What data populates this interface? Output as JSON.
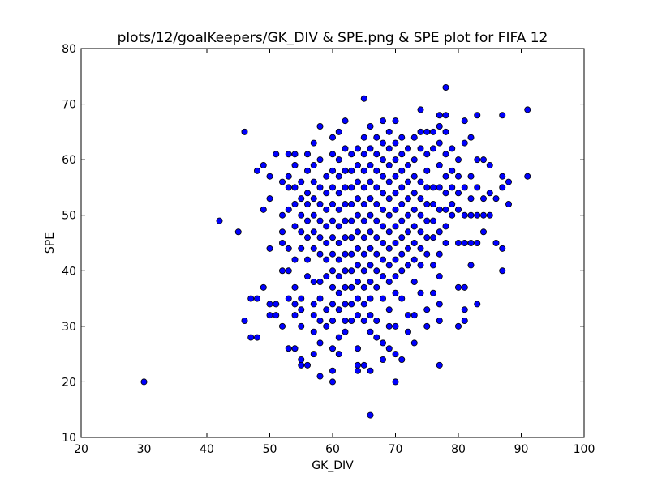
{
  "chart_data": {
    "type": "scatter",
    "title": "plots/12/goalKeepers/GK_DIV & SPE.png & SPE plot for FIFA 12",
    "xlabel": "GK_DIV",
    "ylabel": "SPE",
    "xlim": [
      20,
      100
    ],
    "ylim": [
      10,
      80
    ],
    "xticks": [
      20,
      30,
      40,
      50,
      60,
      70,
      80,
      90,
      100
    ],
    "yticks": [
      10,
      20,
      30,
      40,
      50,
      60,
      70,
      80
    ],
    "grid": false,
    "marker_color": "#0000ff",
    "marker_edge_color": "#000000",
    "points": [
      [
        30,
        20
      ],
      [
        42,
        49
      ],
      [
        45,
        47
      ],
      [
        46,
        65
      ],
      [
        46,
        31
      ],
      [
        47,
        35
      ],
      [
        47,
        28
      ],
      [
        48,
        58
      ],
      [
        48,
        35
      ],
      [
        48,
        28
      ],
      [
        49,
        59
      ],
      [
        49,
        51
      ],
      [
        49,
        37
      ],
      [
        50,
        57
      ],
      [
        50,
        53
      ],
      [
        50,
        44
      ],
      [
        50,
        34
      ],
      [
        50,
        32
      ],
      [
        51,
        61
      ],
      [
        51,
        34
      ],
      [
        51,
        32
      ],
      [
        52,
        56
      ],
      [
        52,
        50
      ],
      [
        52,
        47
      ],
      [
        52,
        45
      ],
      [
        52,
        40
      ],
      [
        52,
        30
      ],
      [
        53,
        61
      ],
      [
        53,
        57
      ],
      [
        53,
        55
      ],
      [
        53,
        51
      ],
      [
        53,
        44
      ],
      [
        53,
        40
      ],
      [
        53,
        35
      ],
      [
        53,
        26
      ],
      [
        54,
        61
      ],
      [
        54,
        59
      ],
      [
        54,
        55
      ],
      [
        54,
        52
      ],
      [
        54,
        48
      ],
      [
        54,
        42
      ],
      [
        54,
        37
      ],
      [
        54,
        34
      ],
      [
        54,
        32
      ],
      [
        54,
        26
      ],
      [
        55,
        56
      ],
      [
        55,
        53
      ],
      [
        55,
        50
      ],
      [
        55,
        47
      ],
      [
        55,
        44
      ],
      [
        55,
        35
      ],
      [
        55,
        33
      ],
      [
        55,
        30
      ],
      [
        55,
        24
      ],
      [
        55,
        23
      ],
      [
        56,
        61
      ],
      [
        56,
        58
      ],
      [
        56,
        54
      ],
      [
        56,
        52
      ],
      [
        56,
        49
      ],
      [
        56,
        46
      ],
      [
        56,
        42
      ],
      [
        56,
        39
      ],
      [
        56,
        23
      ],
      [
        57,
        63
      ],
      [
        57,
        59
      ],
      [
        57,
        56
      ],
      [
        57,
        53
      ],
      [
        57,
        50
      ],
      [
        57,
        47
      ],
      [
        57,
        44
      ],
      [
        57,
        38
      ],
      [
        57,
        34
      ],
      [
        57,
        32
      ],
      [
        57,
        29
      ],
      [
        57,
        25
      ],
      [
        58,
        66
      ],
      [
        58,
        60
      ],
      [
        58,
        55
      ],
      [
        58,
        52
      ],
      [
        58,
        49
      ],
      [
        58,
        46
      ],
      [
        58,
        43
      ],
      [
        58,
        38
      ],
      [
        58,
        35
      ],
      [
        58,
        31
      ],
      [
        58,
        27
      ],
      [
        58,
        21
      ],
      [
        59,
        57
      ],
      [
        59,
        54
      ],
      [
        59,
        51
      ],
      [
        59,
        48
      ],
      [
        59,
        45
      ],
      [
        59,
        42
      ],
      [
        59,
        39
      ],
      [
        59,
        33
      ],
      [
        59,
        30
      ],
      [
        60,
        64
      ],
      [
        60,
        61
      ],
      [
        60,
        58
      ],
      [
        60,
        55
      ],
      [
        60,
        52
      ],
      [
        60,
        49
      ],
      [
        60,
        46
      ],
      [
        60,
        43
      ],
      [
        60,
        40
      ],
      [
        60,
        37
      ],
      [
        60,
        34
      ],
      [
        60,
        31
      ],
      [
        60,
        26
      ],
      [
        60,
        22
      ],
      [
        60,
        20
      ],
      [
        61,
        65
      ],
      [
        61,
        60
      ],
      [
        61,
        57
      ],
      [
        61,
        54
      ],
      [
        61,
        51
      ],
      [
        61,
        48
      ],
      [
        61,
        45
      ],
      [
        61,
        42
      ],
      [
        61,
        39
      ],
      [
        61,
        36
      ],
      [
        61,
        33
      ],
      [
        61,
        28
      ],
      [
        61,
        25
      ],
      [
        62,
        67
      ],
      [
        62,
        62
      ],
      [
        62,
        58
      ],
      [
        62,
        55
      ],
      [
        62,
        52
      ],
      [
        62,
        49
      ],
      [
        62,
        46
      ],
      [
        62,
        43
      ],
      [
        62,
        40
      ],
      [
        62,
        37
      ],
      [
        62,
        34
      ],
      [
        62,
        31
      ],
      [
        62,
        29
      ],
      [
        63,
        61
      ],
      [
        63,
        58
      ],
      [
        63,
        55
      ],
      [
        63,
        52
      ],
      [
        63,
        49
      ],
      [
        63,
        46
      ],
      [
        63,
        43
      ],
      [
        63,
        40
      ],
      [
        63,
        37
      ],
      [
        63,
        34
      ],
      [
        63,
        31
      ],
      [
        64,
        62
      ],
      [
        64,
        59
      ],
      [
        64,
        56
      ],
      [
        64,
        53
      ],
      [
        64,
        50
      ],
      [
        64,
        47
      ],
      [
        64,
        44
      ],
      [
        64,
        41
      ],
      [
        64,
        38
      ],
      [
        64,
        35
      ],
      [
        64,
        32
      ],
      [
        64,
        26
      ],
      [
        64,
        23
      ],
      [
        64,
        22
      ],
      [
        65,
        71
      ],
      [
        65,
        64
      ],
      [
        65,
        61
      ],
      [
        65,
        58
      ],
      [
        65,
        55
      ],
      [
        65,
        52
      ],
      [
        65,
        49
      ],
      [
        65,
        46
      ],
      [
        65,
        43
      ],
      [
        65,
        40
      ],
      [
        65,
        37
      ],
      [
        65,
        34
      ],
      [
        65,
        31
      ],
      [
        65,
        23
      ],
      [
        66,
        66
      ],
      [
        66,
        62
      ],
      [
        66,
        59
      ],
      [
        66,
        56
      ],
      [
        66,
        53
      ],
      [
        66,
        50
      ],
      [
        66,
        47
      ],
      [
        66,
        44
      ],
      [
        66,
        41
      ],
      [
        66,
        38
      ],
      [
        66,
        35
      ],
      [
        66,
        32
      ],
      [
        66,
        29
      ],
      [
        66,
        22
      ],
      [
        66,
        14
      ],
      [
        67,
        64
      ],
      [
        67,
        61
      ],
      [
        67,
        58
      ],
      [
        67,
        55
      ],
      [
        67,
        52
      ],
      [
        67,
        49
      ],
      [
        67,
        46
      ],
      [
        67,
        43
      ],
      [
        67,
        40
      ],
      [
        67,
        37
      ],
      [
        67,
        31
      ],
      [
        67,
        28
      ],
      [
        68,
        67
      ],
      [
        68,
        63
      ],
      [
        68,
        60
      ],
      [
        68,
        57
      ],
      [
        68,
        54
      ],
      [
        68,
        51
      ],
      [
        68,
        48
      ],
      [
        68,
        45
      ],
      [
        68,
        42
      ],
      [
        68,
        39
      ],
      [
        68,
        35
      ],
      [
        68,
        27
      ],
      [
        68,
        24
      ],
      [
        69,
        65
      ],
      [
        69,
        62
      ],
      [
        69,
        59
      ],
      [
        69,
        56
      ],
      [
        69,
        53
      ],
      [
        69,
        50
      ],
      [
        69,
        47
      ],
      [
        69,
        44
      ],
      [
        69,
        41
      ],
      [
        69,
        38
      ],
      [
        69,
        33
      ],
      [
        69,
        30
      ],
      [
        69,
        26
      ],
      [
        70,
        67
      ],
      [
        70,
        63
      ],
      [
        70,
        60
      ],
      [
        70,
        57
      ],
      [
        70,
        54
      ],
      [
        70,
        51
      ],
      [
        70,
        48
      ],
      [
        70,
        45
      ],
      [
        70,
        42
      ],
      [
        70,
        39
      ],
      [
        70,
        36
      ],
      [
        70,
        30
      ],
      [
        70,
        25
      ],
      [
        70,
        20
      ],
      [
        71,
        64
      ],
      [
        71,
        61
      ],
      [
        71,
        58
      ],
      [
        71,
        55
      ],
      [
        71,
        52
      ],
      [
        71,
        49
      ],
      [
        71,
        46
      ],
      [
        71,
        43
      ],
      [
        71,
        40
      ],
      [
        71,
        35
      ],
      [
        71,
        24
      ],
      [
        72,
        62
      ],
      [
        72,
        59
      ],
      [
        72,
        56
      ],
      [
        72,
        53
      ],
      [
        72,
        50
      ],
      [
        72,
        47
      ],
      [
        72,
        44
      ],
      [
        72,
        41
      ],
      [
        72,
        32
      ],
      [
        72,
        29
      ],
      [
        73,
        64
      ],
      [
        73,
        60
      ],
      [
        73,
        57
      ],
      [
        73,
        54
      ],
      [
        73,
        51
      ],
      [
        73,
        48
      ],
      [
        73,
        45
      ],
      [
        73,
        42
      ],
      [
        73,
        38
      ],
      [
        73,
        32
      ],
      [
        73,
        27
      ],
      [
        74,
        69
      ],
      [
        74,
        65
      ],
      [
        74,
        62
      ],
      [
        74,
        56
      ],
      [
        74,
        53
      ],
      [
        74,
        50
      ],
      [
        74,
        47
      ],
      [
        74,
        44
      ],
      [
        74,
        41
      ],
      [
        74,
        36
      ],
      [
        75,
        65
      ],
      [
        75,
        61
      ],
      [
        75,
        58
      ],
      [
        75,
        55
      ],
      [
        75,
        52
      ],
      [
        75,
        49
      ],
      [
        75,
        46
      ],
      [
        75,
        43
      ],
      [
        75,
        33
      ],
      [
        75,
        30
      ],
      [
        76,
        65
      ],
      [
        76,
        62
      ],
      [
        76,
        55
      ],
      [
        76,
        52
      ],
      [
        76,
        49
      ],
      [
        76,
        46
      ],
      [
        76,
        41
      ],
      [
        76,
        36
      ],
      [
        77,
        68
      ],
      [
        77,
        66
      ],
      [
        77,
        63
      ],
      [
        77,
        59
      ],
      [
        77,
        55
      ],
      [
        77,
        51
      ],
      [
        77,
        47
      ],
      [
        77,
        43
      ],
      [
        77,
        39
      ],
      [
        77,
        34
      ],
      [
        77,
        31
      ],
      [
        77,
        23
      ],
      [
        78,
        73
      ],
      [
        78,
        68
      ],
      [
        78,
        65
      ],
      [
        78,
        61
      ],
      [
        78,
        57
      ],
      [
        78,
        54
      ],
      [
        78,
        51
      ],
      [
        78,
        48
      ],
      [
        78,
        45
      ],
      [
        79,
        62
      ],
      [
        79,
        58
      ],
      [
        79,
        55
      ],
      [
        79,
        52
      ],
      [
        79,
        50
      ],
      [
        80,
        60
      ],
      [
        80,
        57
      ],
      [
        80,
        54
      ],
      [
        80,
        51
      ],
      [
        80,
        45
      ],
      [
        80,
        37
      ],
      [
        80,
        30
      ],
      [
        81,
        67
      ],
      [
        81,
        63
      ],
      [
        81,
        55
      ],
      [
        81,
        50
      ],
      [
        81,
        45
      ],
      [
        81,
        37
      ],
      [
        81,
        33
      ],
      [
        81,
        31
      ],
      [
        82,
        64
      ],
      [
        82,
        57
      ],
      [
        82,
        53
      ],
      [
        82,
        50
      ],
      [
        82,
        45
      ],
      [
        82,
        41
      ],
      [
        83,
        68
      ],
      [
        83,
        60
      ],
      [
        83,
        55
      ],
      [
        83,
        50
      ],
      [
        83,
        45
      ],
      [
        83,
        34
      ],
      [
        84,
        60
      ],
      [
        84,
        53
      ],
      [
        84,
        50
      ],
      [
        84,
        47
      ],
      [
        85,
        59
      ],
      [
        85,
        54
      ],
      [
        85,
        50
      ],
      [
        86,
        53
      ],
      [
        86,
        45
      ],
      [
        87,
        68
      ],
      [
        87,
        57
      ],
      [
        87,
        55
      ],
      [
        87,
        44
      ],
      [
        87,
        40
      ],
      [
        88,
        56
      ],
      [
        88,
        52
      ],
      [
        91,
        69
      ],
      [
        91,
        57
      ]
    ]
  }
}
